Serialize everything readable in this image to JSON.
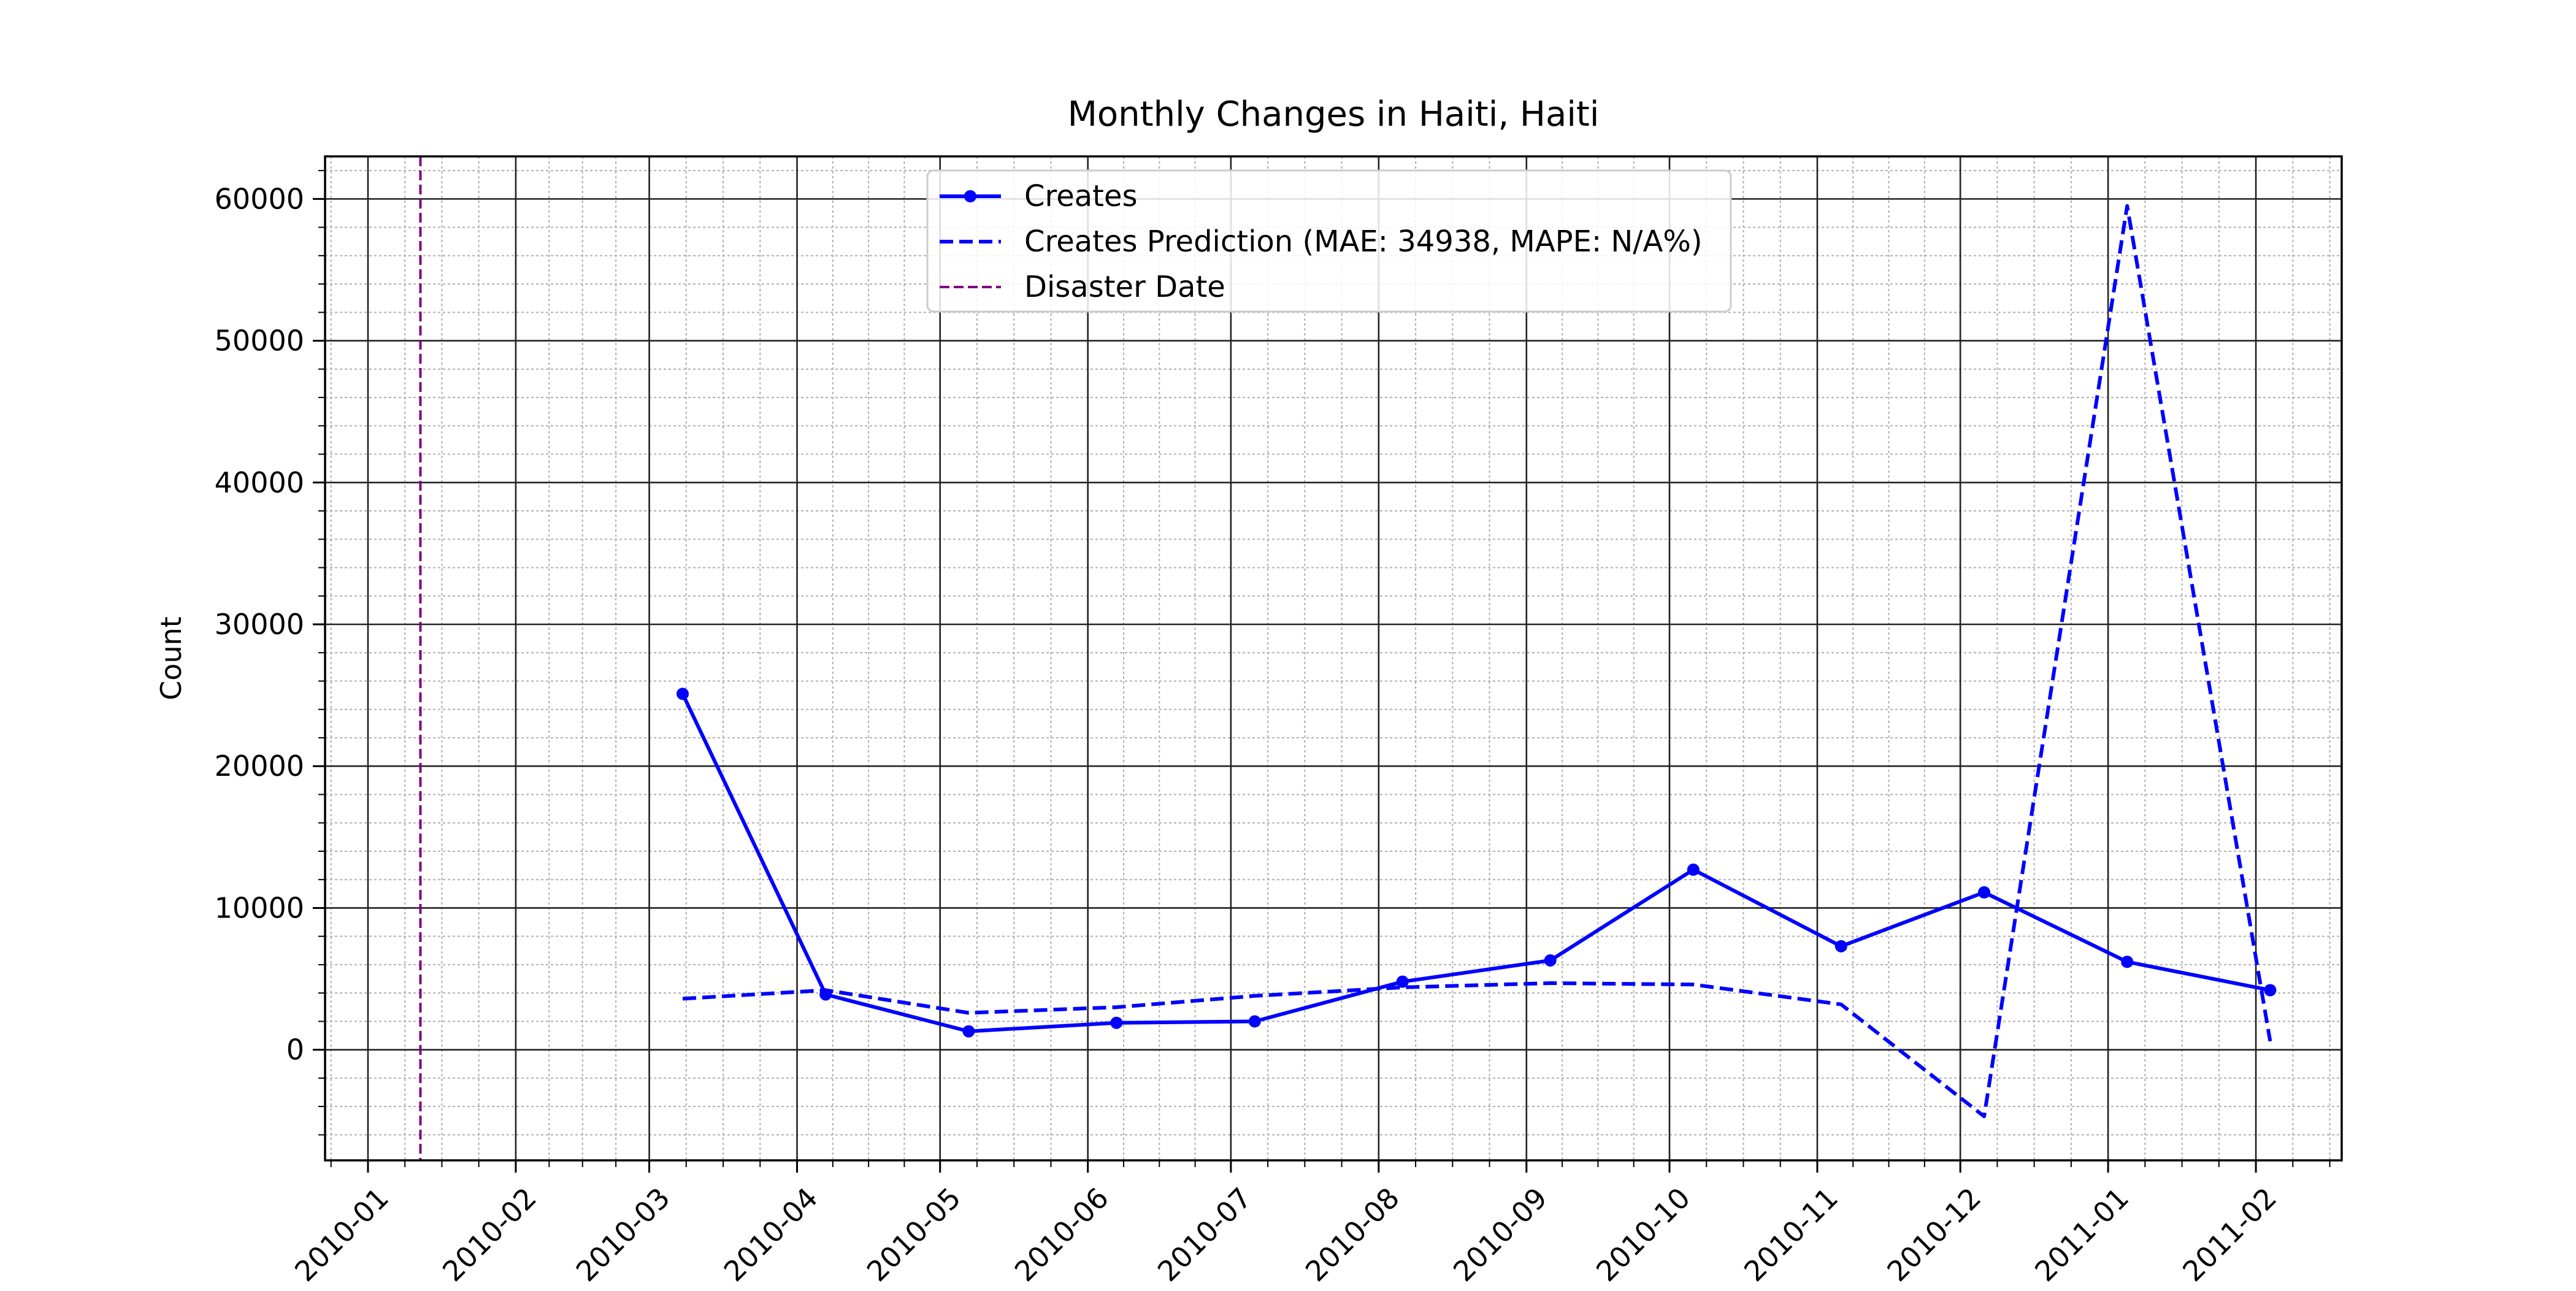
{
  "chart_data": {
    "type": "line",
    "title": "Monthly Changes in Haiti, Haiti",
    "xlabel": "",
    "ylabel": "Count",
    "x_tick_labels": [
      "2010-01",
      "2010-02",
      "2010-03",
      "2010-04",
      "2010-05",
      "2010-06",
      "2010-07",
      "2010-08",
      "2010-09",
      "2010-10",
      "2010-11",
      "2010-12",
      "2011-01",
      "2011-02"
    ],
    "y_tick_labels": [
      "0",
      "10000",
      "20000",
      "30000",
      "40000",
      "50000",
      "60000"
    ],
    "x_range": [
      "2009-12-23",
      "2011-02-19"
    ],
    "ylim": [
      -7800,
      63000
    ],
    "grid": {
      "major": true,
      "minor": true
    },
    "legend_position": "upper-center",
    "series": [
      {
        "name": "Creates",
        "style": "solid-marker",
        "color": "#0000ff",
        "points": [
          {
            "x": "2010-03-08",
            "y": 25100
          },
          {
            "x": "2010-04-07",
            "y": 3900
          },
          {
            "x": "2010-05-07",
            "y": 1300
          },
          {
            "x": "2010-06-07",
            "y": 1900
          },
          {
            "x": "2010-07-06",
            "y": 2000
          },
          {
            "x": "2010-08-06",
            "y": 4800
          },
          {
            "x": "2010-09-06",
            "y": 6300
          },
          {
            "x": "2010-10-06",
            "y": 12700
          },
          {
            "x": "2010-11-06",
            "y": 7300
          },
          {
            "x": "2010-12-06",
            "y": 11100
          },
          {
            "x": "2011-01-05",
            "y": 6200
          },
          {
            "x": "2011-02-04",
            "y": 4200
          }
        ]
      },
      {
        "name": "Creates Prediction (MAE: 34938, MAPE: N/A%)",
        "style": "dashed",
        "color": "#0000ff",
        "points": [
          {
            "x": "2010-03-08",
            "y": 3600
          },
          {
            "x": "2010-04-07",
            "y": 4200
          },
          {
            "x": "2010-05-07",
            "y": 2600
          },
          {
            "x": "2010-06-07",
            "y": 3000
          },
          {
            "x": "2010-07-06",
            "y": 3800
          },
          {
            "x": "2010-08-06",
            "y": 4400
          },
          {
            "x": "2010-09-06",
            "y": 4700
          },
          {
            "x": "2010-10-06",
            "y": 4600
          },
          {
            "x": "2010-11-06",
            "y": 3200
          },
          {
            "x": "2010-12-06",
            "y": -4700
          },
          {
            "x": "2011-01-05",
            "y": 59500
          },
          {
            "x": "2011-02-04",
            "y": 600
          }
        ]
      }
    ],
    "vlines": [
      {
        "name": "Disaster Date",
        "x": "2010-01-12",
        "color": "#800080",
        "style": "dashed"
      }
    ]
  }
}
